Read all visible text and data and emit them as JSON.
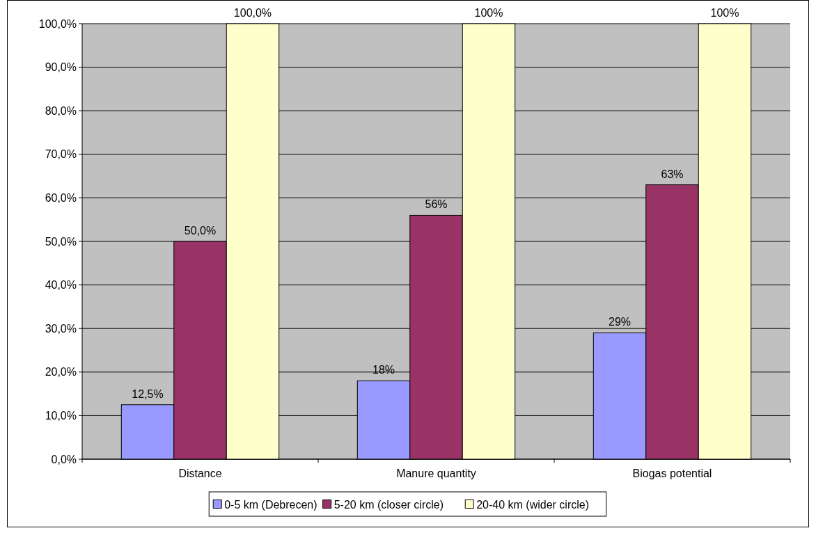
{
  "chart_data": {
    "type": "bar",
    "categories": [
      "Distance",
      "Manure quantity",
      "Biogas potential"
    ],
    "series": [
      {
        "name": "0-5 km (Debrecen)",
        "color": "#9999ff",
        "values": [
          12.5,
          18,
          29
        ],
        "value_labels": [
          "12,5%",
          "18%",
          "29%"
        ]
      },
      {
        "name": "5-20 km (closer circle)",
        "color": "#993366",
        "values": [
          50,
          56,
          63
        ],
        "value_labels": [
          "50,0%",
          "56%",
          "63%"
        ]
      },
      {
        "name": "20-40 km (wider circle)",
        "color": "#ffffcc",
        "values": [
          100,
          100,
          100
        ],
        "value_labels": [
          "100,0%",
          "100%",
          "100%"
        ]
      }
    ],
    "ylim": [
      0,
      100
    ],
    "yticks": [
      {
        "value": 0,
        "label": "0,0%"
      },
      {
        "value": 10,
        "label": "10,0%"
      },
      {
        "value": 20,
        "label": "20,0%"
      },
      {
        "value": 30,
        "label": "30,0%"
      },
      {
        "value": 40,
        "label": "40,0%"
      },
      {
        "value": 50,
        "label": "50,0%"
      },
      {
        "value": 60,
        "label": "60,0%"
      },
      {
        "value": 70,
        "label": "70,0%"
      },
      {
        "value": 80,
        "label": "80,0%"
      },
      {
        "value": 90,
        "label": "90,0%"
      },
      {
        "value": 100,
        "label": "100,0%"
      }
    ],
    "grid": true,
    "legend": "bottom"
  }
}
